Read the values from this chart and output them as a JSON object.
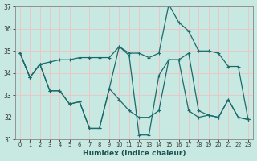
{
  "xlabel": "Humidex (Indice chaleur)",
  "xlim": [
    -0.5,
    23.5
  ],
  "ylim": [
    31,
    37
  ],
  "yticks": [
    31,
    32,
    33,
    34,
    35,
    36,
    37
  ],
  "xticks": [
    0,
    1,
    2,
    3,
    4,
    5,
    6,
    7,
    8,
    9,
    10,
    11,
    12,
    13,
    14,
    15,
    16,
    17,
    18,
    19,
    20,
    21,
    22,
    23
  ],
  "bg_color": "#c8e8e2",
  "grid_color": "#e8c8c8",
  "line_color": "#1a6b6b",
  "series": [
    {
      "x": [
        0,
        1,
        2,
        3,
        4,
        5,
        6,
        7,
        8,
        9,
        10,
        11,
        12,
        13,
        14,
        15,
        16,
        17,
        18,
        19,
        20,
        21,
        22,
        23
      ],
      "y": [
        34.9,
        33.8,
        34.4,
        34.5,
        34.6,
        34.6,
        34.7,
        34.7,
        34.7,
        34.7,
        35.2,
        34.9,
        34.9,
        34.7,
        34.9,
        37.1,
        36.3,
        35.9,
        35.0,
        35.0,
        34.9,
        34.3,
        34.3,
        31.9
      ]
    },
    {
      "x": [
        0,
        1,
        2,
        3,
        4,
        5,
        6,
        7,
        8,
        9,
        10,
        11,
        12,
        13,
        14,
        15,
        16,
        17,
        18,
        19,
        20,
        21,
        22,
        23
      ],
      "y": [
        34.9,
        33.8,
        34.4,
        33.2,
        33.2,
        32.6,
        32.7,
        31.5,
        31.5,
        33.3,
        35.2,
        34.8,
        31.2,
        31.2,
        33.9,
        34.6,
        34.6,
        34.9,
        32.3,
        32.1,
        32.0,
        32.8,
        32.0,
        31.9
      ]
    },
    {
      "x": [
        0,
        1,
        2,
        3,
        4,
        5,
        6,
        7,
        8,
        9,
        10,
        11,
        12,
        13,
        14,
        15,
        16,
        17,
        18,
        19,
        20,
        21,
        22,
        23
      ],
      "y": [
        34.9,
        33.8,
        34.4,
        33.2,
        33.2,
        32.6,
        32.7,
        31.5,
        31.5,
        33.3,
        32.8,
        32.3,
        32.0,
        32.0,
        32.3,
        34.6,
        34.6,
        32.3,
        32.0,
        32.1,
        32.0,
        32.8,
        32.0,
        31.9
      ]
    }
  ]
}
